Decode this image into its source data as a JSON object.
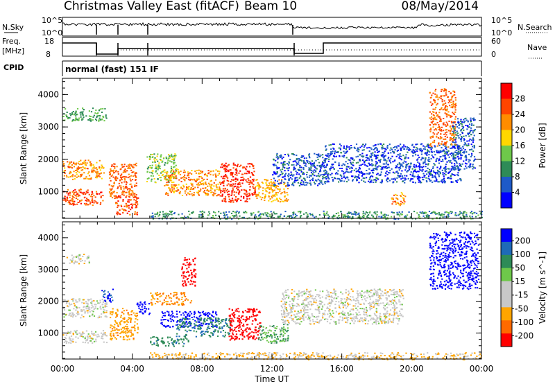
{
  "header": {
    "title": "Christmas Valley East (fitACF)",
    "beam": "Beam 10",
    "date": "08/May/2014"
  },
  "params": {
    "nsky_label": "N.Sky",
    "nsearch_label": "N.Search",
    "freq_label": "Freq.",
    "freq_unit": "[MHz]",
    "nave_label": "Nave",
    "cpid_label": "CPID",
    "cpid_value": "normal (fast) 151 IF",
    "noise_ticks": [
      "10^5",
      "10^0"
    ],
    "freq_ticks": [
      "18",
      "8"
    ],
    "nave_ticks": [
      "60",
      "0"
    ]
  },
  "colors": {
    "power": [
      "#0000ff",
      "#1e5ac8",
      "#2e8b57",
      "#6ec84a",
      "#ffd700",
      "#ff8c00",
      "#ff4500",
      "#ff0000"
    ],
    "velocity": [
      "#0000ff",
      "#1e6ab8",
      "#2e8b57",
      "#6ec84a",
      "#c8c8c8",
      "#c8c8c8",
      "#ffa500",
      "#ff6a00",
      "#ff0000"
    ]
  },
  "chart_data": [
    {
      "type": "heatmap",
      "title": "",
      "xlabel": "Time UT",
      "ylabel": "Slant Range [km]",
      "x_ticks": [
        "00:00",
        "04:00",
        "08:00",
        "12:00",
        "16:00",
        "20:00",
        "00:00"
      ],
      "xlim_hours": [
        0,
        24
      ],
      "ylim": [
        180,
        4500
      ],
      "y_ticks": [
        1000,
        2000,
        3000,
        4000
      ],
      "colorbar_label": "Power [dB]",
      "colorbar_ticks": [
        "4",
        "8",
        "12",
        "16",
        "20",
        "24",
        "28"
      ],
      "colorbar_range": [
        0,
        32
      ],
      "regions": [
        {
          "t0": 0.0,
          "t1": 2.4,
          "r0": 1400,
          "r1": 2000,
          "v": 22
        },
        {
          "t0": 0.0,
          "t1": 2.3,
          "r0": 600,
          "r1": 1100,
          "v": 26
        },
        {
          "t0": 0.0,
          "t1": 2.5,
          "r0": 3200,
          "r1": 3600,
          "v": 12
        },
        {
          "t0": 2.6,
          "t1": 4.2,
          "r0": 800,
          "r1": 1900,
          "v": 24
        },
        {
          "t0": 3.0,
          "t1": 4.3,
          "r0": 300,
          "r1": 900,
          "v": 26
        },
        {
          "t0": 4.8,
          "t1": 6.5,
          "r0": 1300,
          "r1": 2200,
          "v": 14
        },
        {
          "t0": 5.8,
          "t1": 9.0,
          "r0": 900,
          "r1": 1700,
          "v": 22
        },
        {
          "t0": 9.0,
          "t1": 11.0,
          "r0": 700,
          "r1": 1900,
          "v": 28
        },
        {
          "t0": 11.0,
          "t1": 12.9,
          "r0": 700,
          "r1": 1400,
          "v": 20
        },
        {
          "t0": 12.0,
          "t1": 15.2,
          "r0": 1200,
          "r1": 2200,
          "v": 6
        },
        {
          "t0": 15.0,
          "t1": 22.8,
          "r0": 1300,
          "r1": 2500,
          "v": 5
        },
        {
          "t0": 18.8,
          "t1": 19.6,
          "r0": 600,
          "r1": 1000,
          "v": 22
        },
        {
          "t0": 21.0,
          "t1": 22.5,
          "r0": 2400,
          "r1": 4200,
          "v": 24
        },
        {
          "t0": 22.3,
          "t1": 23.6,
          "r0": 1700,
          "r1": 3300,
          "v": 6
        },
        {
          "t0": 5.0,
          "t1": 24.0,
          "r0": 180,
          "r1": 420,
          "v": 10
        }
      ]
    },
    {
      "type": "heatmap",
      "title": "",
      "xlabel": "Time UT",
      "ylabel": "Slant Range [km]",
      "x_ticks": [
        "00:00",
        "04:00",
        "08:00",
        "12:00",
        "16:00",
        "20:00",
        "00:00"
      ],
      "xlim_hours": [
        0,
        24
      ],
      "ylim": [
        180,
        4500
      ],
      "y_ticks": [
        1000,
        2000,
        3000,
        4000
      ],
      "colorbar_label": "Velocity [m s^-1]",
      "colorbar_ticks": [
        "200",
        "100",
        "50",
        "15",
        "-15",
        "-50",
        "-100",
        "-200"
      ],
      "colorbar_range": [
        250,
        -250
      ],
      "regions": [
        {
          "t0": 0.0,
          "t1": 2.5,
          "r0": 1500,
          "r1": 2100,
          "v": 0
        },
        {
          "t0": 0.0,
          "t1": 2.5,
          "r0": 700,
          "r1": 1100,
          "v": 0
        },
        {
          "t0": 0.2,
          "t1": 1.5,
          "r0": 3200,
          "r1": 3500,
          "v": 0
        },
        {
          "t0": 2.2,
          "t1": 2.9,
          "r0": 2000,
          "r1": 2400,
          "v": 150
        },
        {
          "t0": 2.7,
          "t1": 4.3,
          "r0": 800,
          "r1": 1800,
          "v": -60
        },
        {
          "t0": 4.2,
          "t1": 5.0,
          "r0": 1600,
          "r1": 2000,
          "v": 200
        },
        {
          "t0": 5.0,
          "t1": 7.4,
          "r0": 1900,
          "r1": 2300,
          "v": -70
        },
        {
          "t0": 5.6,
          "t1": 8.8,
          "r0": 1200,
          "r1": 1700,
          "v": 200
        },
        {
          "t0": 6.5,
          "t1": 9.6,
          "r0": 900,
          "r1": 1500,
          "v": 70
        },
        {
          "t0": 6.8,
          "t1": 7.6,
          "r0": 2500,
          "r1": 3400,
          "v": -220
        },
        {
          "t0": 9.5,
          "t1": 11.3,
          "r0": 800,
          "r1": 1800,
          "v": -220
        },
        {
          "t0": 11.2,
          "t1": 12.9,
          "r0": 700,
          "r1": 1300,
          "v": 30
        },
        {
          "t0": 12.5,
          "t1": 19.5,
          "r0": 1300,
          "r1": 2400,
          "v": 0
        },
        {
          "t0": 5.0,
          "t1": 7.2,
          "r0": 600,
          "r1": 900,
          "v": 60
        },
        {
          "t0": 21.0,
          "t1": 23.8,
          "r0": 2400,
          "r1": 4200,
          "v": 220
        },
        {
          "t0": 5.0,
          "t1": 24.0,
          "r0": 180,
          "r1": 400,
          "v": -20
        }
      ]
    }
  ]
}
